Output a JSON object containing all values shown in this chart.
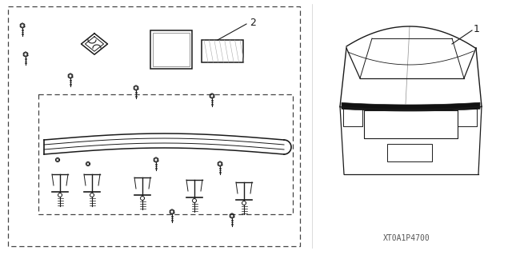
{
  "bg_color": "#ffffff",
  "line_color": "#1a1a1a",
  "dashed_color": "#444444",
  "part_number_text": "XT0A1P4700",
  "label_1": "1",
  "label_2": "2",
  "fig_width": 6.4,
  "fig_height": 3.19,
  "dpi": 100
}
